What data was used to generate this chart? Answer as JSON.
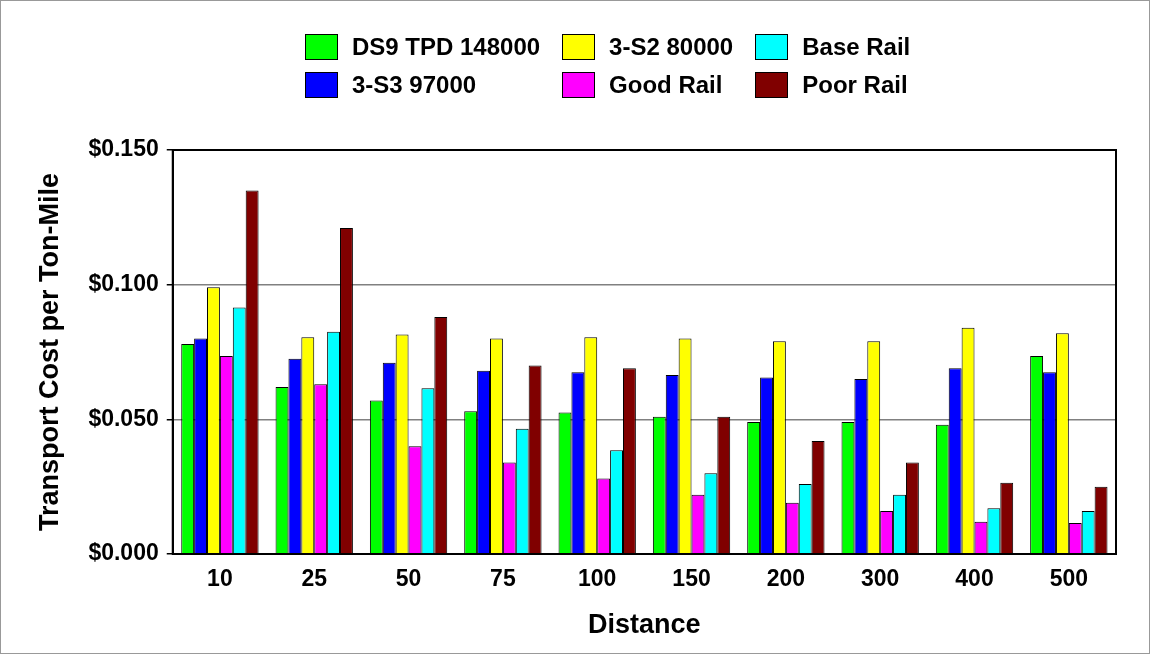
{
  "chart_data": {
    "type": "bar",
    "xlabel": "Distance",
    "ylabel": "Transport Cost per Ton-Mile",
    "categories": [
      "10",
      "25",
      "50",
      "75",
      "100",
      "150",
      "200",
      "300",
      "400",
      "500"
    ],
    "series": [
      {
        "name": "DS9 TPD 148000",
        "color": "#00ff00",
        "values": [
          0.078,
          0.062,
          0.057,
          0.053,
          0.0525,
          0.051,
          0.049,
          0.049,
          0.048,
          0.0735
        ]
      },
      {
        "name": "3-S3 97000",
        "color": "#0000ff",
        "values": [
          0.08,
          0.0725,
          0.071,
          0.068,
          0.0675,
          0.0665,
          0.0655,
          0.065,
          0.069,
          0.0675
        ]
      },
      {
        "name": "3-S2 80000",
        "color": "#ffff00",
        "values": [
          0.099,
          0.0805,
          0.0815,
          0.08,
          0.0805,
          0.08,
          0.079,
          0.079,
          0.084,
          0.082
        ]
      },
      {
        "name": "Good Rail",
        "color": "#ff00ff",
        "values": [
          0.0735,
          0.063,
          0.04,
          0.034,
          0.028,
          0.022,
          0.019,
          0.016,
          0.012,
          0.0115
        ]
      },
      {
        "name": "Base Rail",
        "color": "#00ffff",
        "values": [
          0.0915,
          0.0825,
          0.0615,
          0.0465,
          0.0385,
          0.03,
          0.026,
          0.022,
          0.017,
          0.016
        ]
      },
      {
        "name": "Poor Rail",
        "color": "#800000",
        "values": [
          0.135,
          0.121,
          0.088,
          0.07,
          0.069,
          0.051,
          0.042,
          0.034,
          0.0265,
          0.025
        ]
      }
    ],
    "ylim": [
      0,
      0.15
    ],
    "yticks": [
      {
        "value": 0,
        "label": "$0.000"
      },
      {
        "value": 0.05,
        "label": "$0.050"
      },
      {
        "value": 0.1,
        "label": "$0.100"
      },
      {
        "value": 0.15,
        "label": "$0.150"
      }
    ],
    "grid": "y",
    "legend": "top"
  }
}
